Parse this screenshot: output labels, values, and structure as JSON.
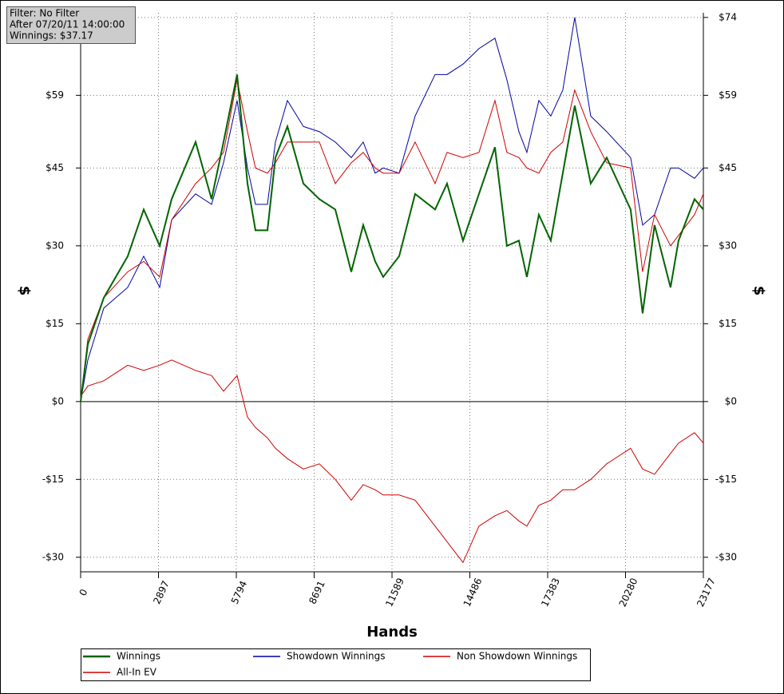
{
  "chart_data": {
    "type": "line",
    "info": [
      "Filter: No Filter",
      "After 07/20/11 14:00:00",
      "Winnings: $37.17"
    ],
    "xlabel": "Hands",
    "ylabel": "$",
    "y2label": "$",
    "x": [
      0,
      267,
      862,
      1753,
      2347,
      2942,
      3387,
      4279,
      4873,
      5318,
      5823,
      6210,
      6507,
      6953,
      7250,
      7696,
      8290,
      8884,
      9478,
      10073,
      10517,
      10963,
      11260,
      11855,
      12449,
      13192,
      13637,
      14231,
      14825,
      15420,
      15865,
      16311,
      16608,
      17054,
      17499,
      17945,
      18390,
      18985,
      19579,
      20470,
      20916,
      21361,
      21955,
      22253,
      22847,
      23177
    ],
    "series": [
      {
        "name": "Winnings",
        "color": "#006400",
        "width": 2,
        "values": [
          0,
          11,
          20,
          28,
          37,
          30,
          39,
          50,
          39,
          50,
          63,
          42,
          33,
          33,
          47,
          53,
          42,
          39,
          37,
          25,
          34,
          27,
          24,
          28,
          40,
          37,
          42,
          31,
          40,
          49,
          30,
          31,
          24,
          36,
          31,
          44,
          57,
          42,
          47,
          37,
          17,
          34,
          22,
          31,
          39,
          37
        ]
      },
      {
        "name": "Showdown Winnings",
        "color": "#0000a0",
        "width": 1,
        "values": [
          0,
          8,
          18,
          22,
          28,
          22,
          35,
          40,
          38,
          46,
          58,
          45,
          38,
          38,
          50,
          58,
          53,
          52,
          50,
          47,
          50,
          44,
          45,
          44,
          55,
          63,
          63,
          65,
          68,
          70,
          62,
          52,
          48,
          58,
          55,
          60,
          74,
          55,
          52,
          47,
          34,
          36,
          45,
          45,
          43,
          45
        ]
      },
      {
        "name": "Non Showdown Winnings",
        "color": "#d00000",
        "width": 1,
        "values": [
          1,
          3,
          4,
          7,
          6,
          7,
          8,
          6,
          5,
          2,
          5,
          -3,
          -5,
          -7,
          -9,
          -11,
          -13,
          -12,
          -15,
          -19,
          -16,
          -17,
          -18,
          -18,
          -19,
          -24,
          -27,
          -31,
          -24,
          -22,
          -21,
          -23,
          -24,
          -20,
          -19,
          -17,
          -17,
          -15,
          -12,
          -9,
          -13,
          -14,
          -10,
          -8,
          -6,
          -8
        ]
      },
      {
        "name": "All-In EV",
        "color": "#d00000",
        "width": 1,
        "values": [
          0,
          12,
          20,
          25,
          27,
          24,
          35,
          42,
          45,
          48,
          62,
          52,
          45,
          44,
          46,
          50,
          50,
          50,
          42,
          46,
          48,
          45,
          44,
          44,
          50,
          42,
          48,
          47,
          48,
          58,
          48,
          47,
          45,
          44,
          48,
          50,
          60,
          52,
          46,
          45,
          25,
          36,
          30,
          32,
          36,
          40
        ]
      }
    ],
    "xlim": [
      0,
      23177
    ],
    "xticks": [
      0,
      2897,
      5794,
      8691,
      11589,
      14486,
      17383,
      20280,
      23177
    ],
    "ylim": [
      -32.8,
      74.9
    ],
    "yticks": [
      {
        "value": -30,
        "label": "-$30"
      },
      {
        "value": -15,
        "label": "-$15"
      },
      {
        "value": 0,
        "label": "$0"
      },
      {
        "value": 15,
        "label": "$15"
      },
      {
        "value": 30,
        "label": "$30"
      },
      {
        "value": 45,
        "label": "$45"
      },
      {
        "value": 59,
        "label": "$59"
      },
      {
        "value": 74,
        "label": "$74"
      }
    ],
    "grid": true
  }
}
